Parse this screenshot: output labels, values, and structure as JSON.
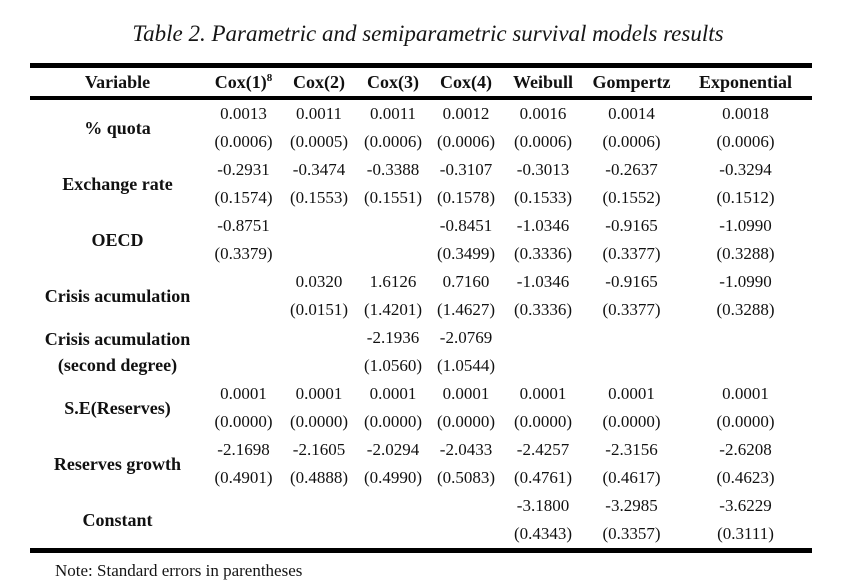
{
  "page": {
    "background_color": "#ffffff",
    "text_color": "#111111",
    "rule_color": "#000000"
  },
  "title": "Table 2. Parametric and semiparametric survival models results",
  "note": "Note: Standard errors in parentheses",
  "table": {
    "columns": [
      {
        "label": "Variable"
      },
      {
        "label": "Cox(1)",
        "sup": "8"
      },
      {
        "label": "Cox(2)"
      },
      {
        "label": "Cox(3)"
      },
      {
        "label": "Cox(4)"
      },
      {
        "label": "Weibull"
      },
      {
        "label": "Gompertz"
      },
      {
        "label": "Exponential"
      }
    ],
    "rows": [
      {
        "variable": "% quota",
        "coef": [
          "0.0013",
          "0.0011",
          "0.0011",
          "0.0012",
          "0.0016",
          "0.0014",
          "0.0018"
        ],
        "se": [
          "(0.0006)",
          "(0.0005)",
          "(0.0006)",
          "(0.0006)",
          "(0.0006)",
          "(0.0006)",
          "(0.0006)"
        ]
      },
      {
        "variable": "Exchange rate",
        "coef": [
          "-0.2931",
          "-0.3474",
          "-0.3388",
          "-0.3107",
          "-0.3013",
          "-0.2637",
          "-0.3294"
        ],
        "se": [
          "(0.1574)",
          "(0.1553)",
          "(0.1551)",
          "(0.1578)",
          "(0.1533)",
          "(0.1552)",
          "(0.1512)"
        ]
      },
      {
        "variable": "OECD",
        "coef": [
          "-0.8751",
          "",
          "",
          "-0.8451",
          "-1.0346",
          "-0.9165",
          "-1.0990"
        ],
        "se": [
          "(0.3379)",
          "",
          "",
          "(0.3499)",
          "(0.3336)",
          "(0.3377)",
          "(0.3288)"
        ]
      },
      {
        "variable": "Crisis acumulation",
        "coef": [
          "",
          "0.0320",
          "1.6126",
          "0.7160",
          "-1.0346",
          "-0.9165",
          "-1.0990"
        ],
        "se": [
          "",
          "(0.0151)",
          "(1.4201)",
          "(1.4627)",
          "(0.3336)",
          "(0.3377)",
          "(0.3288)"
        ]
      },
      {
        "variable": "Crisis acumulation",
        "variable_line2": "(second degree)",
        "coef": [
          "",
          "",
          "-2.1936",
          "-2.0769",
          "",
          "",
          ""
        ],
        "se": [
          "",
          "",
          "(1.0560)",
          "(1.0544)",
          "",
          "",
          ""
        ]
      },
      {
        "variable": "S.E(Reserves)",
        "coef": [
          "0.0001",
          "0.0001",
          "0.0001",
          "0.0001",
          "0.0001",
          "0.0001",
          "0.0001"
        ],
        "se": [
          "(0.0000)",
          "(0.0000)",
          "(0.0000)",
          "(0.0000)",
          "(0.0000)",
          "(0.0000)",
          "(0.0000)"
        ]
      },
      {
        "variable": "Reserves growth",
        "coef": [
          "-2.1698",
          "-2.1605",
          "-2.0294",
          "-2.0433",
          "-2.4257",
          "-2.3156",
          "-2.6208"
        ],
        "se": [
          "(0.4901)",
          "(0.4888)",
          "(0.4990)",
          "(0.5083)",
          "(0.4761)",
          "(0.4617)",
          "(0.4623)"
        ]
      },
      {
        "variable": "Constant",
        "coef": [
          "",
          "",
          "",
          "",
          "-3.1800",
          "-3.2985",
          "-3.6229"
        ],
        "se": [
          "",
          "",
          "",
          "",
          "(0.4343)",
          "(0.3357)",
          "(0.3111)"
        ]
      }
    ]
  }
}
